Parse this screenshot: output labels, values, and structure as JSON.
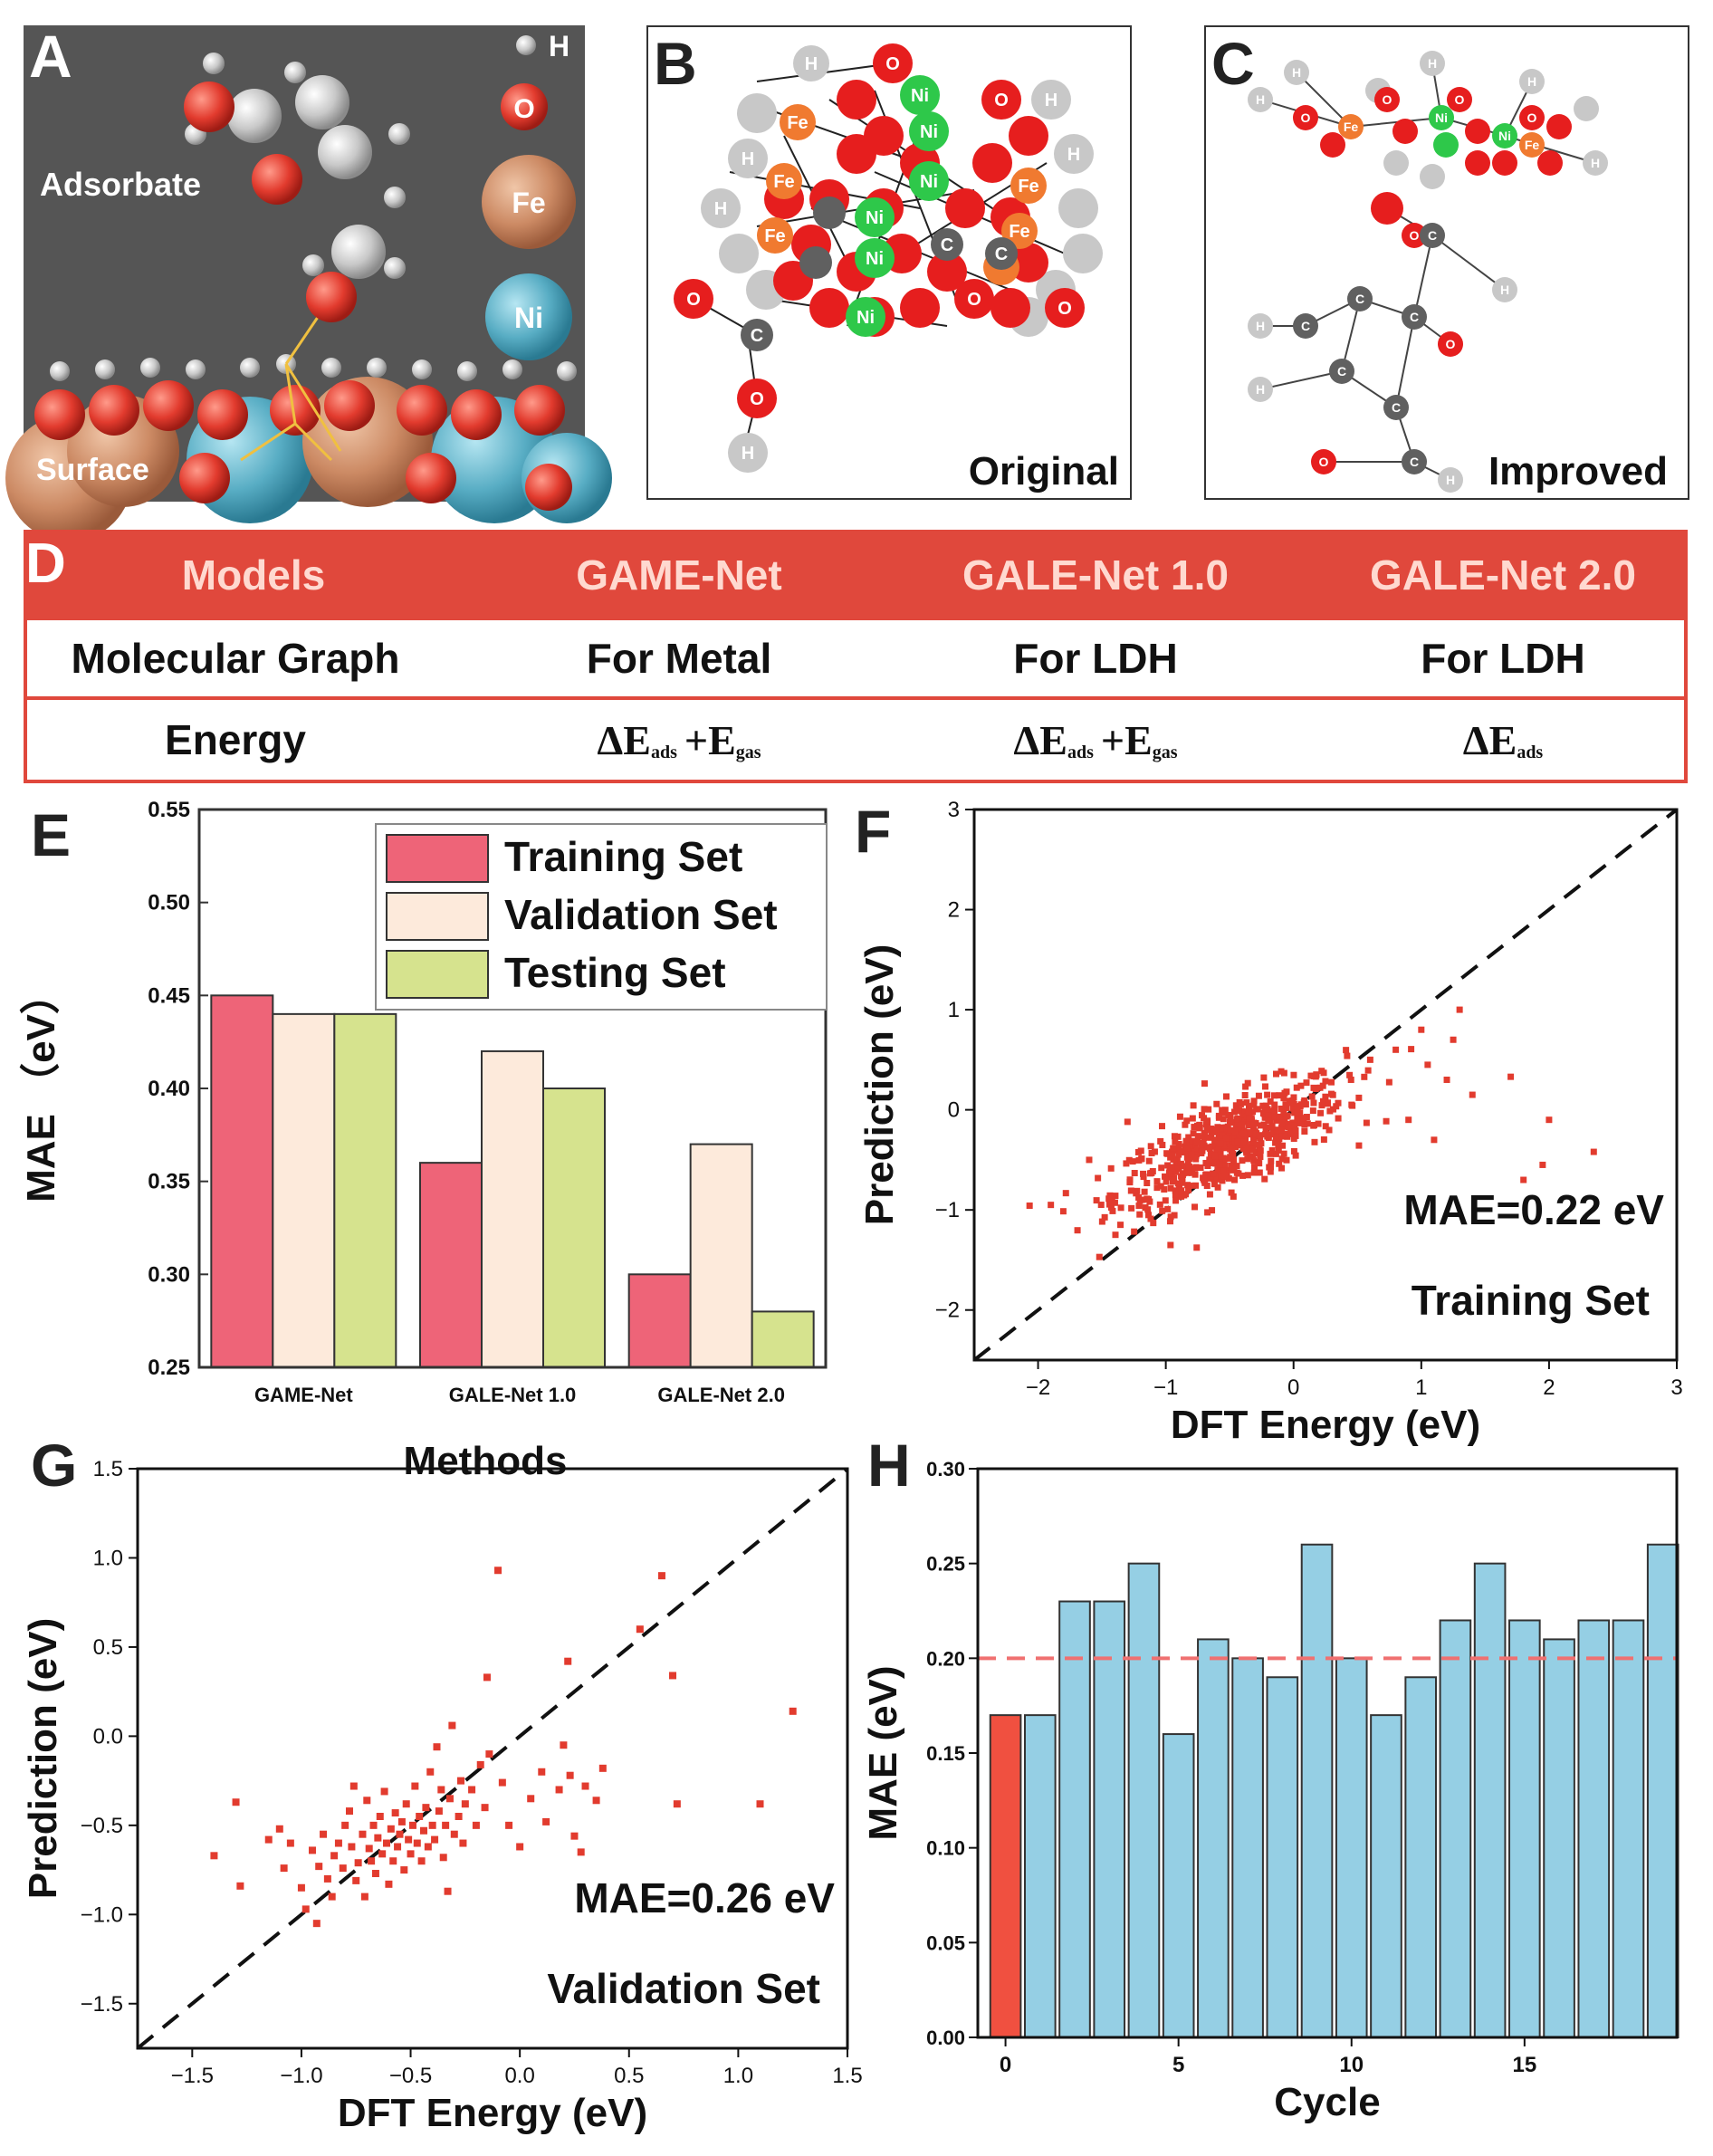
{
  "panels": {
    "A": {
      "letter": "A",
      "label_adsorbate": "Adsorbate",
      "label_surface": "Surface",
      "legend": [
        "H",
        "O",
        "Fe",
        "Ni"
      ]
    },
    "B": {
      "letter": "B",
      "caption": "Original"
    },
    "C": {
      "letter": "C",
      "caption": "Improved"
    },
    "D": {
      "letter": "D"
    },
    "E": {
      "letter": "E"
    },
    "F": {
      "letter": "F"
    },
    "G": {
      "letter": "G"
    },
    "H": {
      "letter": "H"
    }
  },
  "atoms": {
    "H": "H",
    "O": "O",
    "Fe": "Fe",
    "Ni": "Ni",
    "C": "C"
  },
  "colors": {
    "red": "#e23b2e",
    "bar_train": "#ee6478",
    "bar_val": "#fdeadb",
    "bar_test": "#d6e38e",
    "bar_cycle0": "#f05040",
    "bar_cycle": "#95cfe4",
    "table": "#e0483c",
    "ni": "#2ec84a",
    "fe": "#f07a30",
    "c": "#606060",
    "h": "#c8c8c8"
  },
  "table": {
    "headers": [
      "Models",
      "GAME-Net",
      "GALE-Net 1.0",
      "GALE-Net 2.0"
    ],
    "row1": [
      "Molecular Graph",
      "For Metal",
      "For LDH",
      "For LDH"
    ],
    "row2_label": "Energy",
    "energy": {
      "delta_e": "ΔE",
      "sub_ads": "ads",
      "plus": "+E",
      "sub_gas": "gas"
    }
  },
  "chart_data": [
    {
      "panel": "E",
      "type": "bar",
      "categories": [
        "GAME-Net",
        "GALE-Net 1.0",
        "GALE-Net 2.0"
      ],
      "series": [
        {
          "name": "Training Set",
          "values": [
            0.45,
            0.36,
            0.3
          ]
        },
        {
          "name": "Validation Set",
          "values": [
            0.44,
            0.42,
            0.37
          ]
        },
        {
          "name": "Testing Set",
          "values": [
            0.44,
            0.4,
            0.28
          ]
        }
      ],
      "xlabel": "Methods",
      "ylabel": "MAE （eV）",
      "ylim": [
        0.25,
        0.55
      ],
      "yticks": [
        "0.25",
        "0.30",
        "0.35",
        "0.40",
        "0.45",
        "0.50",
        "0.55"
      ],
      "legend": "top-right"
    },
    {
      "panel": "F",
      "type": "scatter",
      "xlabel": "DFT Energy (eV)",
      "ylabel": "Prediction (eV)",
      "xlim": [
        -2.5,
        3
      ],
      "ylim": [
        -2.5,
        3
      ],
      "xticks": [
        "−2",
        "−1",
        "0",
        "1",
        "2",
        "3"
      ],
      "yticks": [
        "−2",
        "−1",
        "0",
        "1",
        "2",
        "3"
      ],
      "annotation": "MAE=0.22 eV",
      "subtitle": "Training Set",
      "n_points": 650,
      "reference": "y = x"
    },
    {
      "panel": "G",
      "type": "scatter",
      "xlabel": "DFT Energy (eV)",
      "ylabel": "Prediction (eV)",
      "xlim": [
        -1.75,
        1.5
      ],
      "ylim": [
        -1.75,
        1.5
      ],
      "xticks": [
        "−1.5",
        "−1.0",
        "−0.5",
        "0.0",
        "0.5",
        "1.0",
        "1.5"
      ],
      "yticks": [
        "−1.5",
        "−1.0",
        "−0.5",
        "0.0",
        "0.5",
        "1.0",
        "1.5"
      ],
      "annotation": "MAE=0.26 eV",
      "subtitle": "Validation Set",
      "points": [
        [
          -1.4,
          -0.67
        ],
        [
          -1.3,
          -0.37
        ],
        [
          -1.28,
          -0.84
        ],
        [
          -1.15,
          -0.58
        ],
        [
          -1.1,
          -0.52
        ],
        [
          -1.08,
          -0.74
        ],
        [
          -1.05,
          -0.6
        ],
        [
          -1.0,
          -0.85
        ],
        [
          -0.98,
          -0.97
        ],
        [
          -0.95,
          -0.64
        ],
        [
          -0.93,
          -1.05
        ],
        [
          -0.92,
          -0.73
        ],
        [
          -0.9,
          -0.55
        ],
        [
          -0.88,
          -0.8
        ],
        [
          -0.86,
          -0.9
        ],
        [
          -0.85,
          -0.67
        ],
        [
          -0.83,
          -0.6
        ],
        [
          -0.81,
          -0.74
        ],
        [
          -0.8,
          -0.5
        ],
        [
          -0.78,
          -0.42
        ],
        [
          -0.77,
          -0.62
        ],
        [
          -0.76,
          -0.28
        ],
        [
          -0.75,
          -0.81
        ],
        [
          -0.74,
          -0.71
        ],
        [
          -0.72,
          -0.55
        ],
        [
          -0.71,
          -0.9
        ],
        [
          -0.7,
          -0.36
        ],
        [
          -0.69,
          -0.63
        ],
        [
          -0.68,
          -0.7
        ],
        [
          -0.67,
          -0.5
        ],
        [
          -0.66,
          -0.77
        ],
        [
          -0.65,
          -0.57
        ],
        [
          -0.64,
          -0.45
        ],
        [
          -0.63,
          -0.66
        ],
        [
          -0.62,
          -0.31
        ],
        [
          -0.61,
          -0.6
        ],
        [
          -0.6,
          -0.83
        ],
        [
          -0.59,
          -0.52
        ],
        [
          -0.58,
          -0.7
        ],
        [
          -0.57,
          -0.43
        ],
        [
          -0.56,
          -0.62
        ],
        [
          -0.55,
          -0.55
        ],
        [
          -0.54,
          -0.48
        ],
        [
          -0.53,
          -0.75
        ],
        [
          -0.52,
          -0.38
        ],
        [
          -0.51,
          -0.58
        ],
        [
          -0.5,
          -0.66
        ],
        [
          -0.49,
          -0.5
        ],
        [
          -0.48,
          -0.28
        ],
        [
          -0.47,
          -0.6
        ],
        [
          -0.46,
          -0.45
        ],
        [
          -0.45,
          -0.7
        ],
        [
          -0.44,
          -0.53
        ],
        [
          -0.43,
          -0.4
        ],
        [
          -0.42,
          -0.62
        ],
        [
          -0.41,
          -0.2
        ],
        [
          -0.4,
          -0.5
        ],
        [
          -0.39,
          -0.58
        ],
        [
          -0.38,
          -0.06
        ],
        [
          -0.37,
          -0.42
        ],
        [
          -0.36,
          -0.3
        ],
        [
          -0.35,
          -0.68
        ],
        [
          -0.34,
          -0.5
        ],
        [
          -0.33,
          -0.87
        ],
        [
          -0.32,
          -0.35
        ],
        [
          -0.31,
          0.06
        ],
        [
          -0.3,
          -0.55
        ],
        [
          -0.28,
          -0.45
        ],
        [
          -0.27,
          -0.25
        ],
        [
          -0.26,
          -0.6
        ],
        [
          -0.25,
          -0.38
        ],
        [
          -0.22,
          -0.3
        ],
        [
          -0.2,
          -0.5
        ],
        [
          -0.18,
          -0.16
        ],
        [
          -0.16,
          -0.4
        ],
        [
          -0.14,
          -0.1
        ],
        [
          -0.15,
          0.33
        ],
        [
          -0.1,
          0.93
        ],
        [
          -0.08,
          -0.26
        ],
        [
          -0.05,
          -0.5
        ],
        [
          0.0,
          -0.62
        ],
        [
          0.05,
          -0.35
        ],
        [
          0.1,
          -0.2
        ],
        [
          0.12,
          -0.48
        ],
        [
          0.18,
          -0.3
        ],
        [
          0.2,
          -0.05
        ],
        [
          0.22,
          0.42
        ],
        [
          0.23,
          -0.22
        ],
        [
          0.25,
          -0.56
        ],
        [
          0.28,
          -0.65
        ],
        [
          0.3,
          -0.28
        ],
        [
          0.35,
          -0.36
        ],
        [
          0.38,
          -0.18
        ],
        [
          0.55,
          0.6
        ],
        [
          0.65,
          0.9
        ],
        [
          0.7,
          0.34
        ],
        [
          0.72,
          -0.38
        ],
        [
          1.1,
          -0.38
        ],
        [
          1.25,
          0.14
        ]
      ]
    },
    {
      "panel": "H",
      "type": "bar",
      "categories": [
        0,
        1,
        2,
        3,
        4,
        5,
        6,
        7,
        8,
        9,
        10,
        11,
        12,
        13,
        14,
        15,
        16,
        17,
        18,
        19
      ],
      "values": [
        0.17,
        0.17,
        0.23,
        0.23,
        0.25,
        0.16,
        0.21,
        0.2,
        0.19,
        0.26,
        0.2,
        0.17,
        0.19,
        0.22,
        0.25,
        0.22,
        0.21,
        0.22,
        0.22,
        0.26
      ],
      "xlabel": "Cycle",
      "ylabel": "MAE (eV)",
      "ylim": [
        0,
        0.3
      ],
      "xticks": [
        "0",
        "5",
        "10",
        "15"
      ],
      "yticks": [
        "0.00",
        "0.05",
        "0.10",
        "0.15",
        "0.20",
        "0.25",
        "0.30"
      ],
      "threshold": 0.2
    }
  ]
}
